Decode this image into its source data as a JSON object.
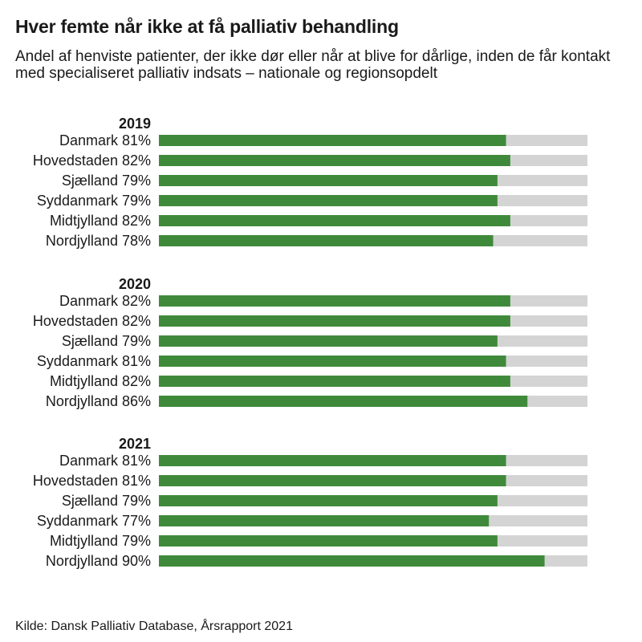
{
  "title": "Hver femte når ikke at få palliativ behandling",
  "subtitle": "Andel af henviste patienter, der ikke dør eller når at blive for dårlige, inden de får kontakt med specialiseret palliativ indsats – nationale og regionsopdelt",
  "source": "Kilde: Dansk Palliativ Database, Årsrapport 2021",
  "colors": {
    "bar": "#3f8a3a",
    "track": "#d4d4d4",
    "text": "#1a1a1a"
  },
  "chart_data": {
    "type": "bar",
    "orientation": "horizontal",
    "xlim": [
      0,
      100
    ],
    "grid": false,
    "groups": [
      {
        "label": "2019",
        "items": [
          {
            "name": "Danmark",
            "value": 81,
            "label": "Danmark 81%"
          },
          {
            "name": "Hovedstaden",
            "value": 82,
            "label": "Hovedstaden 82%"
          },
          {
            "name": "Sjælland",
            "value": 79,
            "label": "Sjælland 79%"
          },
          {
            "name": "Syddanmark",
            "value": 79,
            "label": "Syddanmark 79%"
          },
          {
            "name": "Midtjylland",
            "value": 82,
            "label": "Midtjylland 82%"
          },
          {
            "name": "Nordjylland",
            "value": 78,
            "label": "Nordjylland 78%"
          }
        ]
      },
      {
        "label": "2020",
        "items": [
          {
            "name": "Danmark",
            "value": 82,
            "label": "Danmark 82%"
          },
          {
            "name": "Hovedstaden",
            "value": 82,
            "label": "Hovedstaden 82%"
          },
          {
            "name": "Sjælland",
            "value": 79,
            "label": "Sjælland 79%"
          },
          {
            "name": "Syddanmark",
            "value": 81,
            "label": "Syddanmark 81%"
          },
          {
            "name": "Midtjylland",
            "value": 82,
            "label": "Midtjylland 82%"
          },
          {
            "name": "Nordjylland",
            "value": 86,
            "label": "Nordjylland 86%"
          }
        ]
      },
      {
        "label": "2021",
        "items": [
          {
            "name": "Danmark",
            "value": 81,
            "label": "Danmark 81%"
          },
          {
            "name": "Hovedstaden",
            "value": 81,
            "label": "Hovedstaden 81%"
          },
          {
            "name": "Sjælland",
            "value": 79,
            "label": "Sjælland 79%"
          },
          {
            "name": "Syddanmark",
            "value": 77,
            "label": "Syddanmark 77%"
          },
          {
            "name": "Midtjylland",
            "value": 79,
            "label": "Midtjylland 79%"
          },
          {
            "name": "Nordjylland",
            "value": 90,
            "label": "Nordjylland 90%"
          }
        ]
      }
    ]
  }
}
